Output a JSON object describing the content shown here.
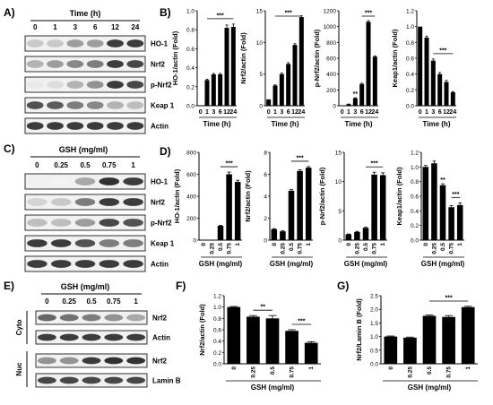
{
  "panels": {
    "A": {
      "letter": "A)",
      "header": "Time (h)",
      "lanes": [
        "0",
        "1",
        "3",
        "6",
        "12",
        "24"
      ],
      "rows": [
        {
          "label": "HO-1",
          "levels": [
            0.25,
            0.25,
            0.45,
            0.45,
            0.9,
            0.9
          ]
        },
        {
          "label": "Nrf2",
          "levels": [
            0.35,
            0.45,
            0.55,
            0.6,
            0.9,
            0.85
          ]
        },
        {
          "label": "p-Nrf2",
          "levels": [
            0.1,
            0.15,
            0.35,
            0.5,
            0.9,
            0.85
          ]
        },
        {
          "label": "Keap 1",
          "levels": [
            0.8,
            0.75,
            0.6,
            0.55,
            0.35,
            0.3
          ]
        },
        {
          "label": "Actin",
          "levels": [
            0.9,
            0.9,
            0.9,
            0.9,
            0.9,
            0.9
          ]
        }
      ]
    },
    "C": {
      "letter": "C)",
      "header": "GSH (mg/ml)",
      "lanes": [
        "0",
        "0.25",
        "0.5",
        "0.75",
        "1"
      ],
      "rows": [
        {
          "label": "HO-1",
          "levels": [
            0.0,
            0.05,
            0.4,
            0.95,
            0.9
          ]
        },
        {
          "label": "Nrf2",
          "levels": [
            0.2,
            0.25,
            0.6,
            0.9,
            0.9
          ]
        },
        {
          "label": "p-Nrf2",
          "levels": [
            0.3,
            0.3,
            0.45,
            0.85,
            0.8
          ]
        },
        {
          "label": "Keap 1",
          "levels": [
            0.9,
            0.9,
            0.8,
            0.6,
            0.6
          ]
        },
        {
          "label": "Actin",
          "levels": [
            0.9,
            0.9,
            0.9,
            0.9,
            0.9
          ]
        }
      ]
    },
    "E": {
      "letter": "E)",
      "header": "GSH (mg/ml)",
      "lanes": [
        "0",
        "0.25",
        "0.5",
        "0.75",
        "1"
      ],
      "groups": [
        "Cyto",
        "Nuc"
      ],
      "rows": [
        {
          "label": "Nrf2",
          "group": 0,
          "levels": [
            0.7,
            0.65,
            0.6,
            0.5,
            0.4
          ]
        },
        {
          "label": "Actin",
          "group": 0,
          "levels": [
            0.9,
            0.9,
            0.9,
            0.9,
            0.9
          ]
        },
        {
          "label": "Nrf2",
          "group": 1,
          "levels": [
            0.5,
            0.5,
            0.9,
            0.95,
            0.95
          ]
        },
        {
          "label": "Lamin B",
          "group": 1,
          "levels": [
            0.85,
            0.85,
            0.85,
            0.85,
            0.85
          ]
        }
      ]
    }
  },
  "chart_data": [
    {
      "panel": "B",
      "letter": "B)",
      "type": "bar",
      "ylabel": "HO-1/actin (Fold)",
      "xlabel": "Time (h)",
      "categories": [
        "0",
        "1",
        "3",
        "6",
        "12",
        "24"
      ],
      "values": [
        0.0,
        0.27,
        0.33,
        0.33,
        0.82,
        0.83
      ],
      "errors": [
        0,
        0.01,
        0.01,
        0.01,
        0.03,
        0.03
      ],
      "ylim": [
        0,
        1.0
      ],
      "yticks": [
        "0.0",
        "0.2",
        "0.4",
        "0.6",
        "0.8",
        "1.0"
      ],
      "sig": {
        "text": "***",
        "from": 1,
        "to": 5
      }
    },
    {
      "panel": "B",
      "type": "bar",
      "ylabel": "Nrf2/actin (Fold)",
      "xlabel": "Time (h)",
      "categories": [
        "0",
        "1",
        "3",
        "6",
        "12",
        "24"
      ],
      "values": [
        1.0,
        3.2,
        5.0,
        6.6,
        9.6,
        14.0
      ],
      "errors": [
        0,
        0.1,
        0.15,
        0.2,
        0.2,
        0.2
      ],
      "ylim": [
        0,
        15
      ],
      "yticks": [
        "0",
        "5",
        "10",
        "15"
      ],
      "sig": {
        "text": "***",
        "from": 1,
        "to": 5
      }
    },
    {
      "panel": "B",
      "type": "bar",
      "ylabel": "p-Nrf2/actin (Fold)",
      "xlabel": "Time (h)",
      "categories": [
        "0",
        "1",
        "3",
        "6",
        "12",
        "24"
      ],
      "values": [
        1,
        20,
        95,
        275,
        1060,
        620
      ],
      "errors": [
        0,
        2,
        5,
        10,
        15,
        10
      ],
      "ylim": [
        0,
        1200
      ],
      "yticks": [
        "0",
        "200",
        "400",
        "600",
        "800",
        "1000",
        "1200"
      ],
      "sig": {
        "text": "***",
        "from": 3,
        "to": 5
      },
      "sig2": {
        "text": "**",
        "at": 2
      }
    },
    {
      "panel": "B",
      "type": "bar",
      "ylabel": "Keap1/actin (Fold)",
      "xlabel": "Time (h)",
      "categories": [
        "0",
        "1",
        "3",
        "6",
        "12",
        "24"
      ],
      "values": [
        1.0,
        0.86,
        0.57,
        0.4,
        0.3,
        0.17
      ],
      "errors": [
        0,
        0.02,
        0.02,
        0.02,
        0.02,
        0.01
      ],
      "ylim": [
        0,
        1.2
      ],
      "yticks": [
        "0.0",
        "0.2",
        "0.4",
        "0.6",
        "0.8",
        "1.0",
        "1.2"
      ],
      "sig": {
        "text": "***",
        "from": 2,
        "to": 5
      }
    },
    {
      "panel": "D",
      "letter": "D)",
      "type": "bar",
      "ylabel": "HO-1/actin (Fold)",
      "xlabel": "GSH (mg/ml)",
      "categories": [
        "0",
        "0.25",
        "0.5",
        "0.75",
        "1"
      ],
      "values": [
        0,
        0,
        130,
        600,
        530
      ],
      "errors": [
        0,
        0,
        5,
        20,
        15
      ],
      "ylim": [
        0,
        800
      ],
      "yticks": [
        "0",
        "200",
        "400",
        "600",
        "800"
      ],
      "sig": {
        "text": "***",
        "from": 2,
        "to": 4
      }
    },
    {
      "panel": "D",
      "type": "bar",
      "ylabel": "Nrf2/actin (Fold)",
      "xlabel": "GSH (mg/ml)",
      "categories": [
        "0",
        "0.25",
        "0.5",
        "0.75",
        "1"
      ],
      "values": [
        1.0,
        0.8,
        4.5,
        6.3,
        6.6
      ],
      "errors": [
        0.05,
        0.05,
        0.1,
        0.1,
        0.1
      ],
      "ylim": [
        0,
        8
      ],
      "yticks": [
        "0",
        "2",
        "4",
        "6",
        "8"
      ],
      "sig": {
        "text": "***",
        "from": 2,
        "to": 4
      }
    },
    {
      "panel": "D",
      "type": "bar",
      "ylabel": "p-Nrf2/actin (Fold)",
      "xlabel": "GSH (mg/ml)",
      "categories": [
        "0",
        "0.25",
        "0.5",
        "0.75",
        "1"
      ],
      "values": [
        1.0,
        1.4,
        2.1,
        11.2,
        11.1
      ],
      "errors": [
        0.05,
        0.1,
        0.1,
        0.4,
        0.4
      ],
      "ylim": [
        0,
        15
      ],
      "yticks": [
        "0",
        "5",
        "10",
        "15"
      ],
      "sig": {
        "text": "***",
        "from": 2,
        "to": 4
      }
    },
    {
      "panel": "D",
      "type": "bar",
      "ylabel": "Keap1/actin (Fold)",
      "xlabel": "GSH (mg/ml)",
      "categories": [
        "0",
        "0.25",
        "0.5",
        "0.75",
        "1"
      ],
      "values": [
        1.0,
        1.05,
        0.75,
        0.45,
        0.48
      ],
      "errors": [
        0.02,
        0.03,
        0.02,
        0.02,
        0.03
      ],
      "ylim": [
        0,
        1.2
      ],
      "yticks": [
        "0.0",
        "0.2",
        "0.4",
        "0.6",
        "0.8",
        "1.0",
        "1.2"
      ],
      "sig": {
        "text": "***",
        "from": 3,
        "to": 4
      },
      "sig2": {
        "text": "**",
        "at": 2
      }
    },
    {
      "panel": "F",
      "letter": "F)",
      "type": "bar",
      "ylabel": "Nrf2/actin (Fold)",
      "xlabel": "GSH (mg/ml)",
      "categories": [
        "0",
        "0.25",
        "0.5",
        "0.75",
        "1"
      ],
      "values": [
        1.0,
        0.83,
        0.8,
        0.58,
        0.37
      ],
      "errors": [
        0.01,
        0.02,
        0.05,
        0.02,
        0.02
      ],
      "ylim": [
        0,
        1.2
      ],
      "yticks": [
        "0.0",
        "0.2",
        "0.4",
        "0.6",
        "0.8",
        "1.0",
        "1.2"
      ],
      "sig": {
        "text": "**",
        "from": 1,
        "to": 2
      },
      "sig3": {
        "text": "***",
        "from": 3,
        "to": 4
      }
    },
    {
      "panel": "G",
      "letter": "G)",
      "type": "bar",
      "ylabel": "Nrf2/Lamin B (Fold)",
      "xlabel": "GSH (mg/ml)",
      "categories": [
        "0",
        "0.25",
        "0.5",
        "0.75",
        "1"
      ],
      "values": [
        1.0,
        0.96,
        1.76,
        1.72,
        2.08
      ],
      "errors": [
        0.02,
        0.02,
        0.03,
        0.05,
        0.03
      ],
      "ylim": [
        0,
        2.5
      ],
      "yticks": [
        "0.0",
        "0.5",
        "1.0",
        "1.5",
        "2.0",
        "2.5"
      ],
      "sig": {
        "text": "***",
        "from": 2,
        "to": 4
      }
    }
  ]
}
